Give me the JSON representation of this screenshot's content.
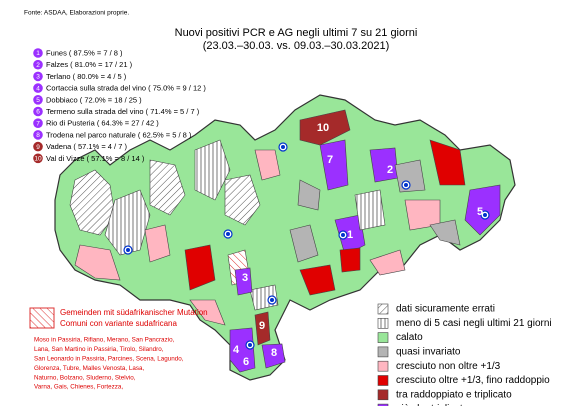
{
  "source": "Fonte: ASDAA, Elaborazioni proprie.",
  "title": "Nuovi positivi PCR e AG negli ultimi 7 su 21 giorni",
  "subtitle": "(23.03.–30.03. vs. 09.03.–30.03.2021)",
  "ranking": [
    {
      "rank": 1,
      "text": "Funes ( 87.5% = 7 / 8 )",
      "color": "#9b30ff"
    },
    {
      "rank": 2,
      "text": "Falzes ( 81.0% = 17 / 21 )",
      "color": "#9b30ff"
    },
    {
      "rank": 3,
      "text": "Terlano ( 80.0% = 4 / 5 )",
      "color": "#9b30ff"
    },
    {
      "rank": 4,
      "text": "Cortaccia sulla strada del vino ( 75.0% = 9 / 12 )",
      "color": "#9b30ff"
    },
    {
      "rank": 5,
      "text": "Dobbiaco ( 72.0% = 18 / 25 )",
      "color": "#9b30ff"
    },
    {
      "rank": 6,
      "text": "Termeno sulla strada del vino ( 71.4% = 5 / 7 )",
      "color": "#9b30ff"
    },
    {
      "rank": 7,
      "text": "Rio di Pusteria ( 64.3% = 27 / 42 )",
      "color": "#9b30ff"
    },
    {
      "rank": 8,
      "text": "Trodena nel parco naturale ( 62.5% = 5 / 8 )",
      "color": "#9b30ff"
    },
    {
      "rank": 9,
      "text": "Vadena ( 57.1% = 4 / 7 )",
      "color": "#a52a2a"
    },
    {
      "rank": 10,
      "text": "Val di Vizze ( 57.1% = 8 / 14 )",
      "color": "#a52a2a"
    }
  ],
  "legend": [
    {
      "label": "dati sicuramente errati",
      "color": "#ffffff"
    },
    {
      "label": "meno di 5 casi negli ultimi 21 giorni",
      "color": "#ffffff"
    },
    {
      "label": "calato",
      "color": "#99e699"
    },
    {
      "label": "quasi invariato",
      "color": "#b4b4b4"
    },
    {
      "label": "cresciuto non oltre +1/3",
      "color": "#ffb6c1"
    },
    {
      "label": "cresciuto oltre +1/3, fino raddoppio",
      "color": "#e00000"
    },
    {
      "label": "tra raddoppiato e triplicato",
      "color": "#a52a2a"
    },
    {
      "label": "più che triplicato",
      "color": "#9b30ff"
    }
  ],
  "mutation": {
    "title_de": "Gemeinden mit südafrikanischer Mutation",
    "title_it": "Comuni con variante sudafricana",
    "lines": [
      "Moso in Passiria,  Rifiano,  Merano,  San Pancrazio,",
      "Lana,  San Martino in Passiria,  Tirolo,  Silandro,",
      "San Leonardo in Passiria,  Parcines,  Scena,  Lagundo,",
      "Glorenza,  Tubre,  Malles Venosta,  Lasa,",
      "Naturno,  Bolzano,  Sluderno,  Stelvio,",
      "Varna,  Gais,  Chienes,  Fortezza,"
    ]
  }
}
